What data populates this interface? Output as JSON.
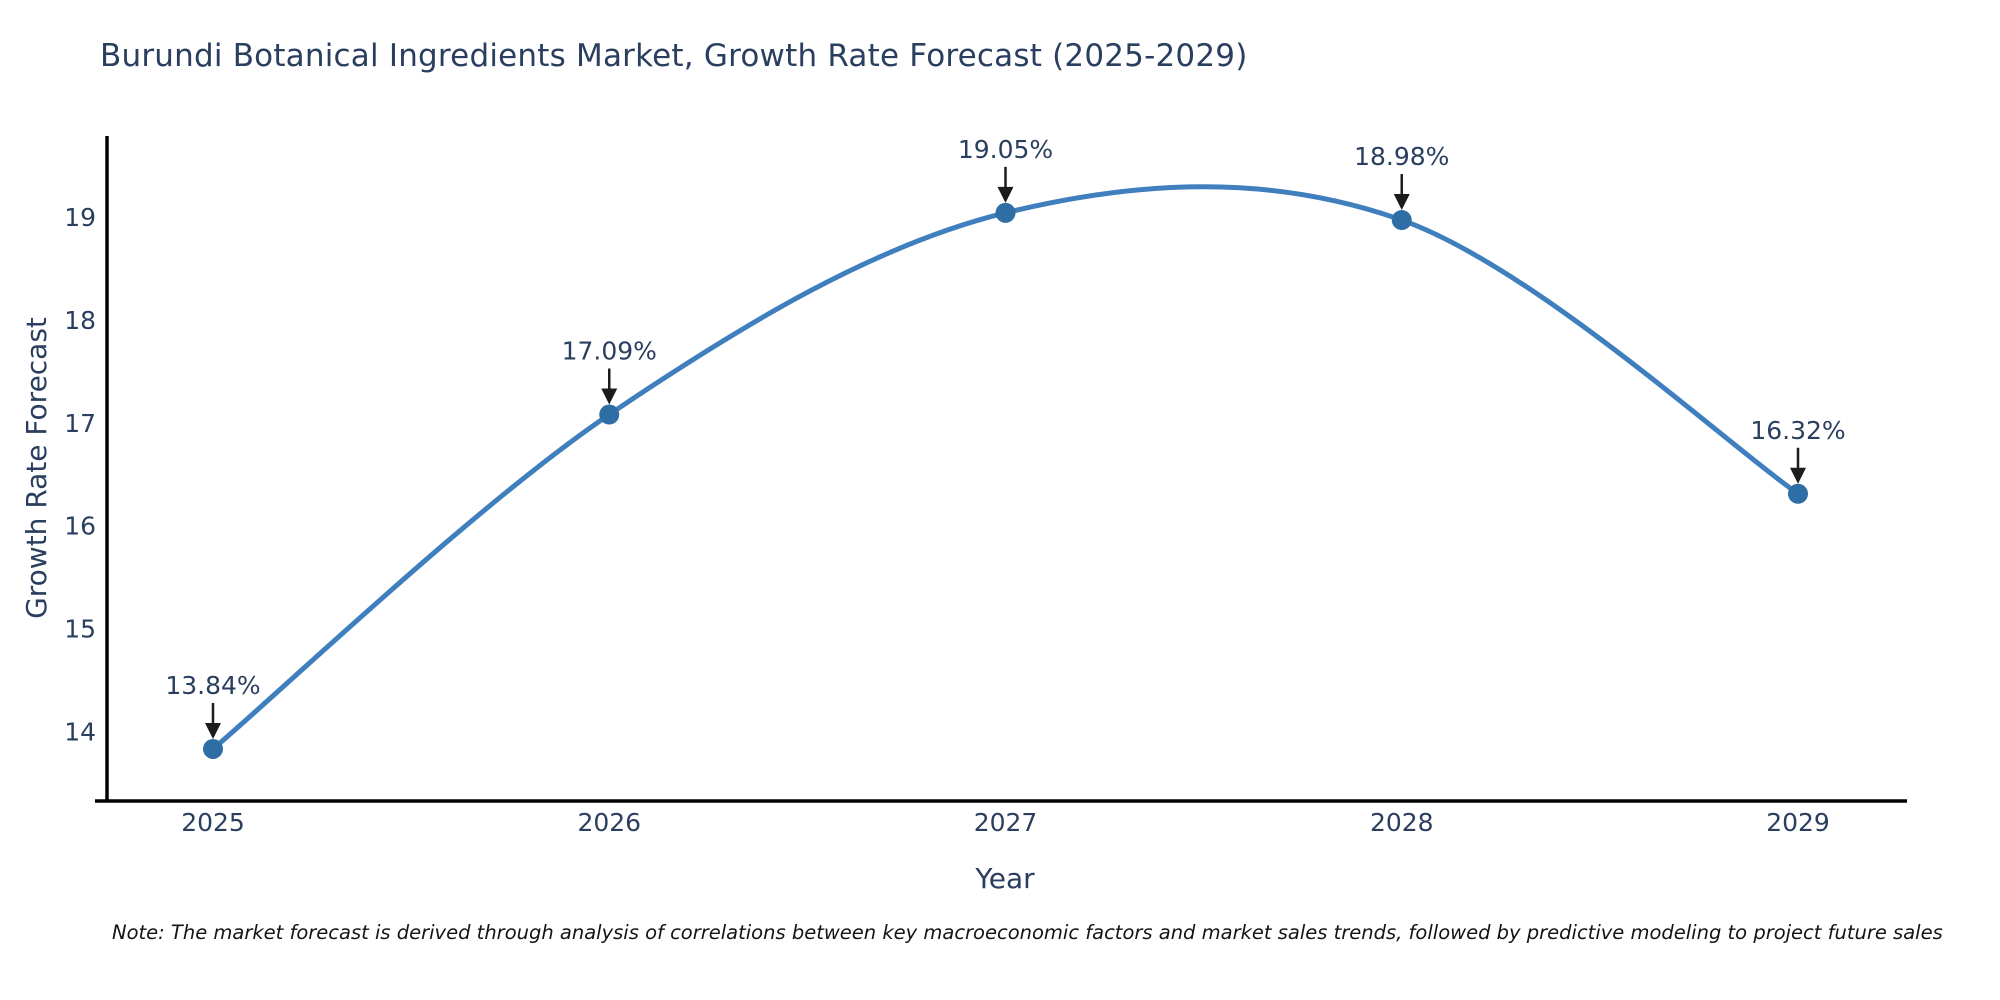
{
  "title": "Burundi Botanical Ingredients Market, Growth Rate Forecast (2025-2029)",
  "note": "Note: The market forecast is derived through analysis of correlations between key macroeconomic factors and market sales trends, followed by predictive modeling to project future sales",
  "chart_data": {
    "type": "line",
    "title": "Burundi Botanical Ingredients Market, Growth Rate Forecast (2025-2029)",
    "xlabel": "Year",
    "ylabel": "Growth Rate Forecast",
    "x": [
      2025,
      2026,
      2027,
      2028,
      2029
    ],
    "series": [
      {
        "name": "Growth Rate Forecast",
        "values": [
          13.84,
          17.09,
          19.05,
          18.98,
          16.32
        ],
        "point_labels": [
          "13.84%",
          "17.09%",
          "19.05%",
          "18.98%",
          "16.32%"
        ]
      }
    ],
    "xticks": [
      "2025",
      "2026",
      "2027",
      "2028",
      "2029"
    ],
    "yticks": [
      14,
      15,
      16,
      17,
      18,
      19
    ],
    "ylim": [
      13.35,
      19.78
    ],
    "line_shape": "spline",
    "grid": false,
    "legend": false,
    "colors": {
      "line": "#3f7fbe",
      "marker": "#2f6da5",
      "axis_line": "#000000",
      "text": "#2a3f5f",
      "annotation_arrow": "#1c1c1c"
    }
  }
}
